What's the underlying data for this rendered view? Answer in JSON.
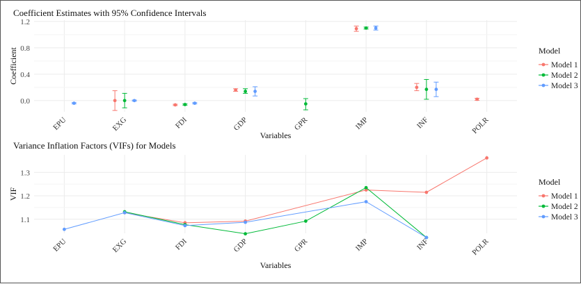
{
  "colors": {
    "Model 1": "#F8766D",
    "Model 2": "#00BA38",
    "Model 3": "#619CFF"
  },
  "chart_data": [
    {
      "type": "scatter",
      "title": "Coefficient Estimates with 95% Confidence Intervals",
      "xlabel": "Variables",
      "ylabel": "Coefficient",
      "categories": [
        "EPU",
        "EXG",
        "FDI",
        "GDP",
        "GPR",
        "IMP",
        "INF",
        "POLR"
      ],
      "yticks": [
        "0.0",
        "0.4",
        "0.8",
        "1.2"
      ],
      "ylim": [
        -0.17,
        1.22
      ],
      "grid": true,
      "error_bars": true,
      "legend": {
        "title": "Model",
        "position": "right",
        "entries": [
          "Model 1",
          "Model 2",
          "Model 3"
        ]
      },
      "series": [
        {
          "name": "Model 1",
          "points": [
            {
              "x": "EXG",
              "y": 0.0,
              "lo": -0.15,
              "hi": 0.15
            },
            {
              "x": "FDI",
              "y": -0.065,
              "lo": -0.075,
              "hi": -0.055
            },
            {
              "x": "GDP",
              "y": 0.16,
              "lo": 0.14,
              "hi": 0.18
            },
            {
              "x": "IMP",
              "y": 1.09,
              "lo": 1.05,
              "hi": 1.13
            },
            {
              "x": "INF",
              "y": 0.2,
              "lo": 0.15,
              "hi": 0.26
            },
            {
              "x": "POLR",
              "y": 0.02,
              "lo": 0.005,
              "hi": 0.035
            }
          ]
        },
        {
          "name": "Model 2",
          "points": [
            {
              "x": "EXG",
              "y": 0.0,
              "lo": -0.11,
              "hi": 0.11
            },
            {
              "x": "FDI",
              "y": -0.06,
              "lo": -0.07,
              "hi": -0.05
            },
            {
              "x": "GDP",
              "y": 0.14,
              "lo": 0.11,
              "hi": 0.18
            },
            {
              "x": "GPR",
              "y": -0.05,
              "lo": -0.14,
              "hi": 0.03
            },
            {
              "x": "IMP",
              "y": 1.1,
              "lo": 1.085,
              "hi": 1.115
            },
            {
              "x": "INF",
              "y": 0.17,
              "lo": 0.02,
              "hi": 0.32
            }
          ]
        },
        {
          "name": "Model 3",
          "points": [
            {
              "x": "EPU",
              "y": -0.04,
              "lo": -0.05,
              "hi": -0.03
            },
            {
              "x": "EXG",
              "y": 0.0,
              "lo": -0.008,
              "hi": 0.008
            },
            {
              "x": "FDI",
              "y": -0.04,
              "lo": -0.05,
              "hi": -0.03
            },
            {
              "x": "GDP",
              "y": 0.14,
              "lo": 0.07,
              "hi": 0.21
            },
            {
              "x": "IMP",
              "y": 1.1,
              "lo": 1.07,
              "hi": 1.13
            },
            {
              "x": "INF",
              "y": 0.17,
              "lo": 0.06,
              "hi": 0.28
            }
          ]
        }
      ]
    },
    {
      "type": "line",
      "title": "Variance Inflation Factors (VIFs) for Models",
      "xlabel": "Variables",
      "ylabel": "VIF",
      "categories": [
        "EPU",
        "EXG",
        "FDI",
        "GDP",
        "GPR",
        "IMP",
        "INF",
        "POLR"
      ],
      "yticks": [
        "1.1",
        "1.2",
        "1.3"
      ],
      "ylim": [
        1.04,
        1.375
      ],
      "grid": true,
      "legend": {
        "title": "Model",
        "position": "right",
        "entries": [
          "Model 1",
          "Model 2",
          "Model 3"
        ]
      },
      "series": [
        {
          "name": "Model 1",
          "points": [
            {
              "x": "EXG",
              "y": 1.128
            },
            {
              "x": "FDI",
              "y": 1.085
            },
            {
              "x": "GDP",
              "y": 1.092
            },
            {
              "x": "IMP",
              "y": 1.225
            },
            {
              "x": "INF",
              "y": 1.215
            },
            {
              "x": "POLR",
              "y": 1.362
            }
          ]
        },
        {
          "name": "Model 2",
          "points": [
            {
              "x": "EXG",
              "y": 1.132
            },
            {
              "x": "FDI",
              "y": 1.077
            },
            {
              "x": "GDP",
              "y": 1.038
            },
            {
              "x": "GPR",
              "y": 1.092
            },
            {
              "x": "IMP",
              "y": 1.235
            },
            {
              "x": "INF",
              "y": 1.022
            }
          ]
        },
        {
          "name": "Model 3",
          "points": [
            {
              "x": "EPU",
              "y": 1.057
            },
            {
              "x": "EXG",
              "y": 1.128
            },
            {
              "x": "FDI",
              "y": 1.073
            },
            {
              "x": "GDP",
              "y": 1.087
            },
            {
              "x": "IMP",
              "y": 1.175
            },
            {
              "x": "INF",
              "y": 1.022
            }
          ]
        }
      ]
    }
  ]
}
